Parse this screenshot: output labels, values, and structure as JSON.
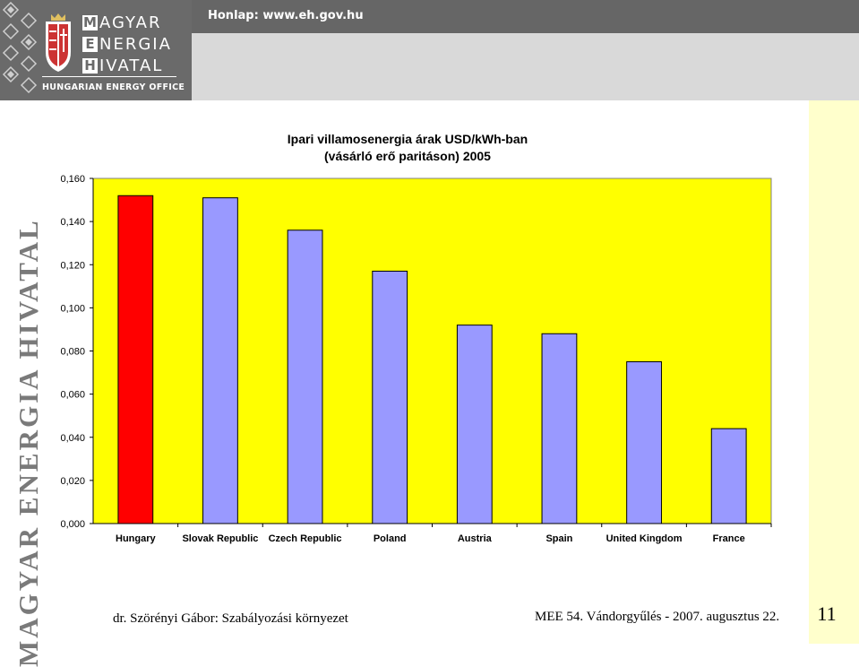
{
  "header": {
    "logo_letters": [
      "M",
      "E",
      "H"
    ],
    "logo_words": [
      "AGYAR",
      "NERGIA",
      "IVATAL"
    ],
    "logo_subtitle": "HUNGARIAN ENERGY OFFICE",
    "homepage": "Honlap: www.eh.gov.hu"
  },
  "side_text": "MAGYAR ENERGIA HIVATAL",
  "footer": {
    "left": "dr. Szörényi Gábor: Szabályozási környezet",
    "right": "MEE 54. Vándorgyűlés - 2007. augusztus 22.",
    "page_number": "11"
  },
  "colors": {
    "plot_background": "#ffff00",
    "highlight_bar": "#ff0000",
    "bar": "#9999ff",
    "right_band": "#ffffcc",
    "header": "#666666"
  },
  "chart_data": {
    "type": "bar",
    "title_line1": "Ipari villamosenergia árak USD/kWh-ban",
    "title_line2": "(vásárló erő paritáson) 2005",
    "categories": [
      "Hungary",
      "Slovak Republic",
      "Czech Republic",
      "Poland",
      "Austria",
      "Spain",
      "United Kingdom",
      "France"
    ],
    "values": [
      0.152,
      0.151,
      0.136,
      0.117,
      0.092,
      0.088,
      0.075,
      0.044
    ],
    "highlight_index": 0,
    "y_ticks": [
      "0,000",
      "0,020",
      "0,040",
      "0,060",
      "0,080",
      "0,100",
      "0,120",
      "0,140",
      "0,160"
    ],
    "ylim": [
      0,
      0.16
    ],
    "grid": false,
    "legend": "none"
  }
}
